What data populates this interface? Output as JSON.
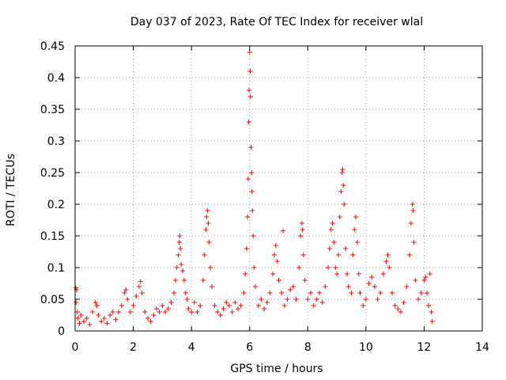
{
  "chart_data": {
    "type": "scatter",
    "title": "Day 037 of 2023, Rate Of TEC Index for receiver wlal",
    "xlabel": "GPS time / hours",
    "ylabel": "ROTI / TECUs",
    "xlim": [
      0,
      14
    ],
    "ylim": [
      0,
      0.45
    ],
    "x_ticks": [
      "0",
      "2",
      "4",
      "6",
      "8",
      "10",
      "12",
      "14"
    ],
    "y_ticks": [
      "0",
      "0.05",
      "0.1",
      "0.15",
      "0.2",
      "0.25",
      "0.3",
      "0.35",
      "0.4",
      "0.45"
    ],
    "x_tick_values": [
      0,
      2,
      4,
      6,
      8,
      10,
      12,
      14
    ],
    "y_tick_values": [
      0,
      0.05,
      0.1,
      0.15,
      0.2,
      0.25,
      0.3,
      0.35,
      0.4,
      0.45
    ],
    "grid": true,
    "marker": "+",
    "color": "#ff0000",
    "series": [
      {
        "name": "ROTI",
        "points": [
          [
            0.02,
            0.068
          ],
          [
            0.05,
            0.065
          ],
          [
            0.03,
            0.045
          ],
          [
            0.08,
            0.03
          ],
          [
            0.1,
            0.02
          ],
          [
            0.15,
            0.012
          ],
          [
            0.2,
            0.025
          ],
          [
            0.3,
            0.015
          ],
          [
            0.4,
            0.02
          ],
          [
            0.5,
            0.01
          ],
          [
            0.6,
            0.03
          ],
          [
            0.7,
            0.045
          ],
          [
            0.75,
            0.04
          ],
          [
            0.8,
            0.025
          ],
          [
            0.9,
            0.015
          ],
          [
            1.0,
            0.02
          ],
          [
            1.1,
            0.012
          ],
          [
            1.2,
            0.025
          ],
          [
            1.3,
            0.03
          ],
          [
            1.4,
            0.018
          ],
          [
            1.5,
            0.03
          ],
          [
            1.6,
            0.04
          ],
          [
            1.7,
            0.06
          ],
          [
            1.75,
            0.065
          ],
          [
            1.8,
            0.05
          ],
          [
            1.9,
            0.03
          ],
          [
            2.0,
            0.04
          ],
          [
            2.1,
            0.055
          ],
          [
            2.2,
            0.07
          ],
          [
            2.25,
            0.078
          ],
          [
            2.3,
            0.06
          ],
          [
            2.4,
            0.03
          ],
          [
            2.5,
            0.02
          ],
          [
            2.6,
            0.015
          ],
          [
            2.7,
            0.025
          ],
          [
            2.8,
            0.035
          ],
          [
            2.9,
            0.03
          ],
          [
            3.0,
            0.04
          ],
          [
            3.1,
            0.03
          ],
          [
            3.2,
            0.035
          ],
          [
            3.3,
            0.045
          ],
          [
            3.4,
            0.06
          ],
          [
            3.45,
            0.08
          ],
          [
            3.5,
            0.1
          ],
          [
            3.55,
            0.12
          ],
          [
            3.58,
            0.14
          ],
          [
            3.6,
            0.15
          ],
          [
            3.62,
            0.13
          ],
          [
            3.65,
            0.105
          ],
          [
            3.7,
            0.095
          ],
          [
            3.75,
            0.08
          ],
          [
            3.8,
            0.06
          ],
          [
            3.85,
            0.05
          ],
          [
            3.9,
            0.035
          ],
          [
            4.0,
            0.03
          ],
          [
            4.1,
            0.045
          ],
          [
            4.2,
            0.03
          ],
          [
            4.3,
            0.04
          ],
          [
            4.4,
            0.08
          ],
          [
            4.45,
            0.12
          ],
          [
            4.5,
            0.16
          ],
          [
            4.52,
            0.18
          ],
          [
            4.55,
            0.19
          ],
          [
            4.58,
            0.17
          ],
          [
            4.6,
            0.14
          ],
          [
            4.65,
            0.1
          ],
          [
            4.7,
            0.07
          ],
          [
            4.8,
            0.04
          ],
          [
            4.9,
            0.03
          ],
          [
            5.0,
            0.025
          ],
          [
            5.1,
            0.035
          ],
          [
            5.2,
            0.045
          ],
          [
            5.3,
            0.04
          ],
          [
            5.4,
            0.03
          ],
          [
            5.5,
            0.045
          ],
          [
            5.6,
            0.035
          ],
          [
            5.7,
            0.04
          ],
          [
            5.8,
            0.06
          ],
          [
            5.85,
            0.09
          ],
          [
            5.9,
            0.13
          ],
          [
            5.93,
            0.18
          ],
          [
            5.95,
            0.24
          ],
          [
            5.97,
            0.33
          ],
          [
            5.98,
            0.38
          ],
          [
            6.0,
            0.44
          ],
          [
            6.02,
            0.41
          ],
          [
            6.03,
            0.37
          ],
          [
            6.05,
            0.29
          ],
          [
            6.07,
            0.25
          ],
          [
            6.08,
            0.22
          ],
          [
            6.1,
            0.19
          ],
          [
            6.12,
            0.15
          ],
          [
            6.15,
            0.1
          ],
          [
            6.2,
            0.07
          ],
          [
            6.3,
            0.04
          ],
          [
            6.4,
            0.05
          ],
          [
            6.5,
            0.035
          ],
          [
            6.6,
            0.045
          ],
          [
            6.7,
            0.06
          ],
          [
            6.8,
            0.09
          ],
          [
            6.85,
            0.12
          ],
          [
            6.9,
            0.135
          ],
          [
            6.95,
            0.11
          ],
          [
            7.0,
            0.08
          ],
          [
            7.1,
            0.06
          ],
          [
            7.15,
            0.158
          ],
          [
            7.2,
            0.04
          ],
          [
            7.3,
            0.05
          ],
          [
            7.4,
            0.065
          ],
          [
            7.5,
            0.07
          ],
          [
            7.6,
            0.05
          ],
          [
            7.7,
            0.1
          ],
          [
            7.75,
            0.15
          ],
          [
            7.8,
            0.17
          ],
          [
            7.82,
            0.16
          ],
          [
            7.85,
            0.12
          ],
          [
            7.9,
            0.08
          ],
          [
            8.0,
            0.05
          ],
          [
            8.1,
            0.06
          ],
          [
            8.2,
            0.04
          ],
          [
            8.3,
            0.05
          ],
          [
            8.4,
            0.06
          ],
          [
            8.5,
            0.045
          ],
          [
            8.6,
            0.07
          ],
          [
            8.7,
            0.1
          ],
          [
            8.75,
            0.13
          ],
          [
            8.8,
            0.16
          ],
          [
            8.85,
            0.17
          ],
          [
            8.9,
            0.14
          ],
          [
            8.95,
            0.1
          ],
          [
            9.0,
            0.09
          ],
          [
            9.05,
            0.12
          ],
          [
            9.1,
            0.18
          ],
          [
            9.15,
            0.22
          ],
          [
            9.18,
            0.25
          ],
          [
            9.2,
            0.255
          ],
          [
            9.22,
            0.23
          ],
          [
            9.25,
            0.2
          ],
          [
            9.3,
            0.13
          ],
          [
            9.35,
            0.09
          ],
          [
            9.4,
            0.07
          ],
          [
            9.5,
            0.06
          ],
          [
            9.55,
            0.12
          ],
          [
            9.6,
            0.16
          ],
          [
            9.65,
            0.18
          ],
          [
            9.7,
            0.14
          ],
          [
            9.75,
            0.09
          ],
          [
            9.8,
            0.06
          ],
          [
            9.9,
            0.04
          ],
          [
            10.0,
            0.05
          ],
          [
            10.1,
            0.075
          ],
          [
            10.2,
            0.085
          ],
          [
            10.3,
            0.07
          ],
          [
            10.4,
            0.05
          ],
          [
            10.5,
            0.06
          ],
          [
            10.6,
            0.09
          ],
          [
            10.7,
            0.11
          ],
          [
            10.75,
            0.12
          ],
          [
            10.8,
            0.1
          ],
          [
            10.9,
            0.06
          ],
          [
            11.0,
            0.04
          ],
          [
            11.1,
            0.035
          ],
          [
            11.2,
            0.03
          ],
          [
            11.3,
            0.045
          ],
          [
            11.4,
            0.07
          ],
          [
            11.5,
            0.12
          ],
          [
            11.55,
            0.17
          ],
          [
            11.6,
            0.2
          ],
          [
            11.62,
            0.19
          ],
          [
            11.65,
            0.14
          ],
          [
            11.7,
            0.08
          ],
          [
            11.8,
            0.05
          ],
          [
            11.9,
            0.06
          ],
          [
            12.0,
            0.08
          ],
          [
            12.05,
            0.085
          ],
          [
            12.1,
            0.06
          ],
          [
            12.15,
            0.04
          ],
          [
            12.2,
            0.09
          ],
          [
            12.25,
            0.03
          ],
          [
            12.28,
            0.015
          ]
        ]
      }
    ]
  }
}
